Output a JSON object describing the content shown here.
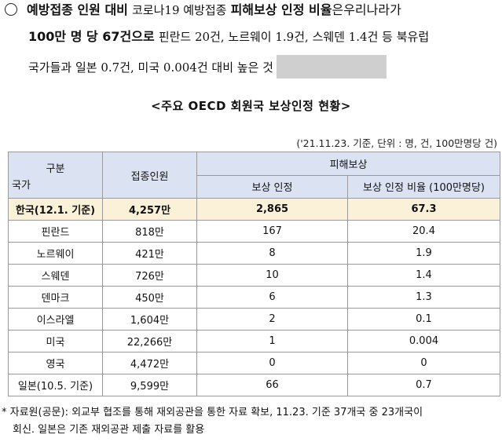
{
  "intro": {
    "line1": {
      "a": "예방접종 인원 대비",
      "b": "코로나19 예방접종",
      "c": "피해보상 인정 비율",
      "d": "은우리나라가"
    },
    "line2": {
      "a": "100만 명 당 67건",
      "b": "으로",
      "c": "핀란드 20건, 노르웨이 1.9건, 스웨덴 1.4건 등 북유럽"
    },
    "line3": {
      "a": "국가들과 일본 0.7건, 미국 0.004건 대비 높은 것"
    }
  },
  "caption": "<주요 OECD 회원국 보상인정 현황>",
  "note": "('21.11.23. 기준, 단위 : 명, 건, 100만명당 건)",
  "table": {
    "headers": {
      "category_top": "구분",
      "category_bottom": "국가",
      "vaccinated": "접종인원",
      "compensation": "피해보상",
      "approved": "보상 인정",
      "ratio": "보상 인정 비율 (100만명당)"
    },
    "rows": [
      {
        "country": "한국(12.1. 기준)",
        "vaccinated": "4,257만",
        "approved": "2,865",
        "ratio": "67.3"
      },
      {
        "country": "핀란드",
        "vaccinated": "818만",
        "approved": "167",
        "ratio": "20.4"
      },
      {
        "country": "노르웨이",
        "vaccinated": "421만",
        "approved": "8",
        "ratio": "1.9"
      },
      {
        "country": "스웨덴",
        "vaccinated": "726만",
        "approved": "10",
        "ratio": "1.4"
      },
      {
        "country": "덴마크",
        "vaccinated": "450만",
        "approved": "6",
        "ratio": "1.3"
      },
      {
        "country": "이스라엘",
        "vaccinated": "1,604만",
        "approved": "2",
        "ratio": "0.1"
      },
      {
        "country": "미국",
        "vaccinated": "22,266만",
        "approved": "1",
        "ratio": "0.004"
      },
      {
        "country": "영국",
        "vaccinated": "4,472만",
        "approved": "0",
        "ratio": "0"
      },
      {
        "country": "일본(10.5. 기준)",
        "vaccinated": "9,599만",
        "approved": "66",
        "ratio": "0.7"
      }
    ]
  },
  "footnote": {
    "line1": "* 자료원(공문): 외교부 협조를 통해 재외공관을 통한 자료 확보, 11.23. 기준 37개국 중 23개국이",
    "line2": "회신. 일본은 기존 재외공관 제출 자료를 활용"
  }
}
